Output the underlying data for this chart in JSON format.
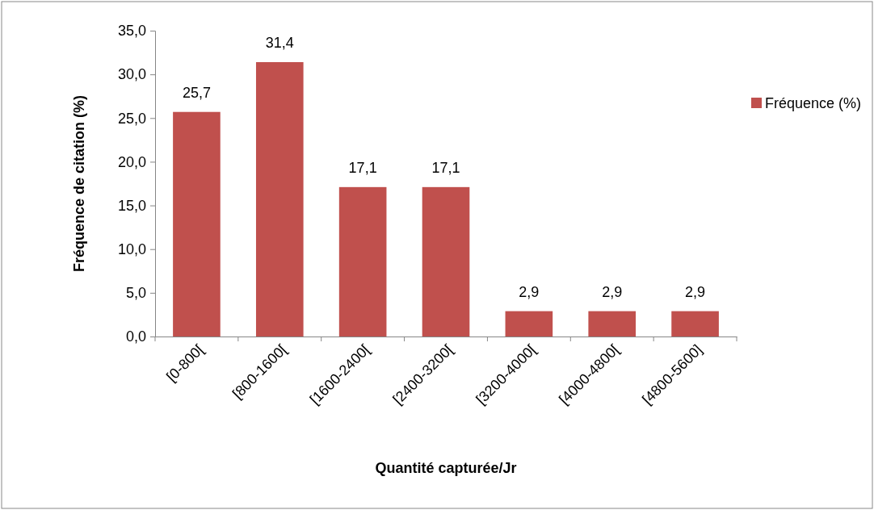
{
  "chart_data": {
    "type": "bar",
    "xlabel": "Quantité capturée/Jr",
    "ylabel": "Fréquence de citation (%)",
    "categories": [
      "[0-800[",
      "[800-1600[",
      "[1600-2400[",
      "[2400-3200[",
      "[3200-4000[",
      "[4000-4800[",
      "[4800-5600]"
    ],
    "series": [
      {
        "name": "Fréquence (%)",
        "color": "#c0504d",
        "values": [
          25.7,
          31.4,
          17.1,
          17.1,
          2.9,
          2.9,
          2.9
        ],
        "value_labels": [
          "25,7",
          "31,4",
          "17,1",
          "17,1",
          "2,9",
          "2,9",
          "2,9"
        ]
      }
    ],
    "ylim": [
      0,
      35
    ],
    "yticks": [
      {
        "value": 0,
        "label": "0,0"
      },
      {
        "value": 5,
        "label": "5,0"
      },
      {
        "value": 10,
        "label": "10,0"
      },
      {
        "value": 15,
        "label": "15,0"
      },
      {
        "value": 20,
        "label": "20,0"
      },
      {
        "value": 25,
        "label": "25,0"
      },
      {
        "value": 30,
        "label": "30,0"
      },
      {
        "value": 35,
        "label": "35,0"
      }
    ],
    "grid": false,
    "legend": "top right"
  }
}
